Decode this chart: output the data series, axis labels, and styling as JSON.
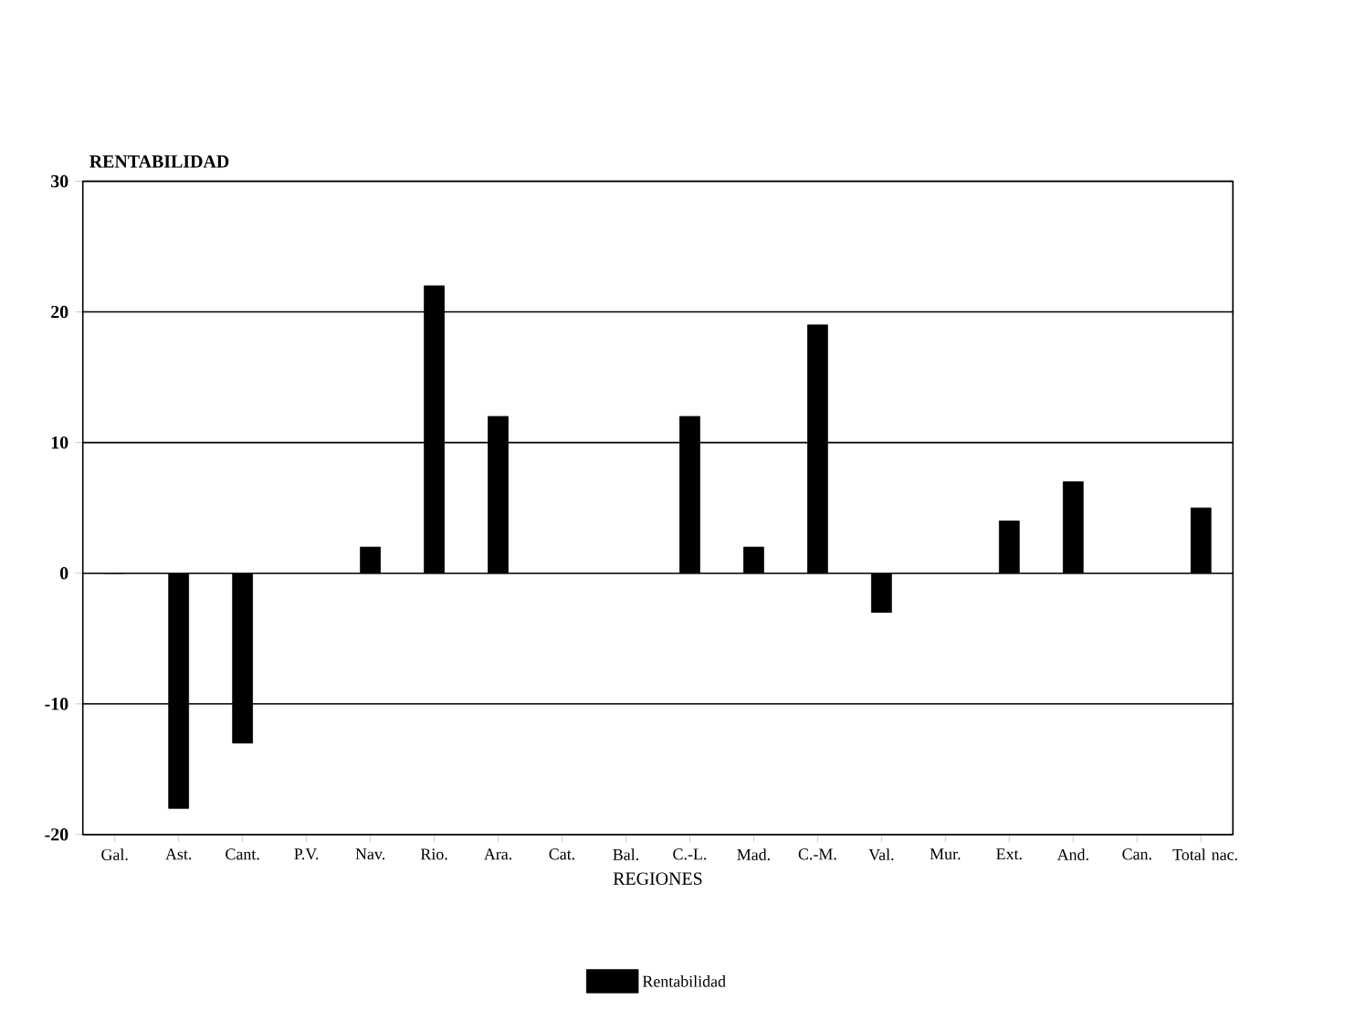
{
  "chart_data": {
    "type": "bar",
    "ylabel": "RENTABILIDAD",
    "xlabel": "REGIONES",
    "categories": [
      "Gal.",
      "Ast.",
      "Cant.",
      "P.V.",
      "Nav.",
      "Rio.",
      "Ara.",
      "Cat.",
      "Bal.",
      "C.-L.",
      "Mad.",
      "C.-M.",
      "Val.",
      "Mur.",
      "Ext.",
      "And.",
      "Can.",
      "Total nac."
    ],
    "series": [
      {
        "name": "Rentabilidad",
        "color": "#000000",
        "values": [
          0,
          -18,
          -13,
          null,
          2,
          22,
          12,
          null,
          null,
          12,
          2,
          19,
          -3,
          null,
          4,
          7,
          null,
          5
        ]
      }
    ],
    "ylim": [
      -20,
      30
    ],
    "yticks": [
      -20,
      -10,
      0,
      10,
      20,
      30
    ],
    "grid": "y",
    "legend": "bottom"
  }
}
